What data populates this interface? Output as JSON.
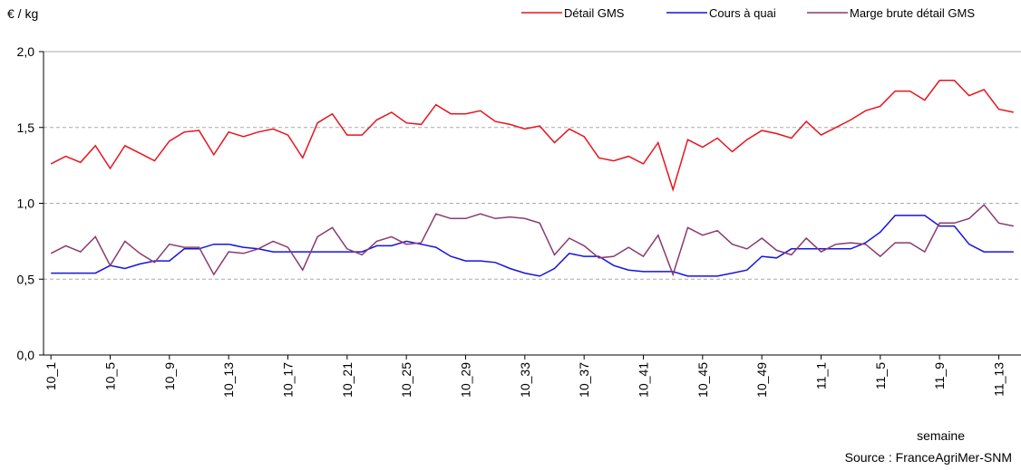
{
  "chart_data": {
    "type": "line",
    "y_label": "€ / kg",
    "x_label": "semaine",
    "source": "Source : FranceAgriMer-SNM",
    "categories": [
      "10_1",
      null,
      null,
      null,
      "10_5",
      null,
      null,
      null,
      "10_9",
      null,
      null,
      null,
      "10_13",
      null,
      null,
      null,
      "10_17",
      null,
      null,
      null,
      "10_21",
      null,
      null,
      null,
      "10_25",
      null,
      null,
      null,
      "10_29",
      null,
      null,
      null,
      "10_33",
      null,
      null,
      null,
      "10_37",
      null,
      null,
      null,
      "10_41",
      null,
      null,
      null,
      "10_45",
      null,
      null,
      null,
      "10_49",
      null,
      null,
      null,
      "11_1",
      null,
      null,
      null,
      "11_5",
      null,
      null,
      null,
      "11_9",
      null,
      null,
      null,
      "11_13",
      null
    ],
    "series": [
      {
        "name": "Détail GMS",
        "color": "#e8141e",
        "values": [
          1.26,
          1.31,
          1.27,
          1.38,
          1.23,
          1.38,
          1.33,
          1.28,
          1.41,
          1.47,
          1.48,
          1.32,
          1.47,
          1.44,
          1.47,
          1.49,
          1.45,
          1.3,
          1.53,
          1.59,
          1.45,
          1.45,
          1.55,
          1.6,
          1.53,
          1.52,
          1.65,
          1.59,
          1.59,
          1.61,
          1.54,
          1.52,
          1.49,
          1.51,
          1.4,
          1.49,
          1.44,
          1.3,
          1.28,
          1.31,
          1.26,
          1.4,
          1.09,
          1.42,
          1.37,
          1.43,
          1.34,
          1.42,
          1.48,
          1.46,
          1.43,
          1.54,
          1.45,
          1.5,
          1.55,
          1.61,
          1.64,
          1.74,
          1.74,
          1.68,
          1.81,
          1.81,
          1.71,
          1.75,
          1.62,
          1.6
        ]
      },
      {
        "name": "Cours à quai",
        "color": "#1414e0",
        "values": [
          0.54,
          0.54,
          0.54,
          0.54,
          0.59,
          0.57,
          0.6,
          0.62,
          0.62,
          0.7,
          0.7,
          0.73,
          0.73,
          0.71,
          0.7,
          0.68,
          0.68,
          0.68,
          0.68,
          0.68,
          0.68,
          0.68,
          0.72,
          0.72,
          0.75,
          0.73,
          0.71,
          0.65,
          0.62,
          0.62,
          0.61,
          0.57,
          0.54,
          0.52,
          0.57,
          0.67,
          0.65,
          0.65,
          0.59,
          0.56,
          0.55,
          0.55,
          0.55,
          0.52,
          0.52,
          0.52,
          0.54,
          0.56,
          0.65,
          0.64,
          0.7,
          0.7,
          0.7,
          0.7,
          0.7,
          0.74,
          0.81,
          0.92,
          0.92,
          0.92,
          0.85,
          0.85,
          0.73,
          0.68,
          0.68,
          0.68
        ]
      },
      {
        "name": "Marge brute détail GMS",
        "color": "#8b3a6e",
        "values": [
          0.67,
          0.72,
          0.68,
          0.78,
          0.59,
          0.75,
          0.67,
          0.61,
          0.73,
          0.71,
          0.71,
          0.53,
          0.68,
          0.67,
          0.7,
          0.75,
          0.71,
          0.56,
          0.78,
          0.84,
          0.7,
          0.66,
          0.75,
          0.78,
          0.73,
          0.74,
          0.93,
          0.9,
          0.9,
          0.93,
          0.9,
          0.91,
          0.9,
          0.87,
          0.66,
          0.77,
          0.72,
          0.64,
          0.65,
          0.71,
          0.65,
          0.79,
          0.53,
          0.84,
          0.79,
          0.82,
          0.73,
          0.7,
          0.77,
          0.69,
          0.66,
          0.77,
          0.68,
          0.73,
          0.74,
          0.73,
          0.65,
          0.74,
          0.74,
          0.68,
          0.87,
          0.87,
          0.9,
          0.99,
          0.87,
          0.85
        ]
      }
    ],
    "ylim": [
      0,
      2
    ],
    "yticks": [
      {
        "value": 0,
        "label": "0,0"
      },
      {
        "value": 0.5,
        "label": "0,5"
      },
      {
        "value": 1,
        "label": "1,0"
      },
      {
        "value": 1.5,
        "label": "1,5"
      },
      {
        "value": 2,
        "label": "2,0"
      }
    ],
    "grid": true
  }
}
